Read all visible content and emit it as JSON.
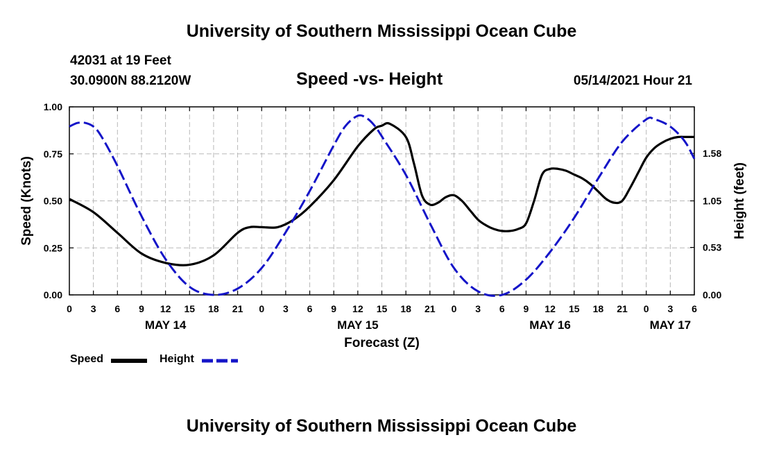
{
  "header": {
    "top_title": "University of Southern Mississippi Ocean Cube",
    "station": "42031 at 19 Feet",
    "coords": "30.0900N  88.2120W",
    "subtitle": "Speed -vs- Height",
    "datetime": "05/14/2021 Hour 21",
    "bottom_title": "University of Southern Mississippi Ocean Cube"
  },
  "colors": {
    "speed": "#000000",
    "height": "#1414c8",
    "grid": "#b8b8b8"
  },
  "chart_data": {
    "type": "line",
    "title": "Speed -vs- Height",
    "xlabel": "Forecast (Z)",
    "ylabel": "Speed (Knots)",
    "y2label": "Height (feet)",
    "x_units": "hours since 00Z May 14",
    "xlim": [
      0,
      78
    ],
    "ylim": [
      0,
      1.0
    ],
    "y2lim": [
      0,
      2.1
    ],
    "xticks": [
      0,
      3,
      6,
      9,
      12,
      15,
      18,
      21,
      24,
      27,
      30,
      33,
      36,
      39,
      42,
      45,
      48,
      51,
      54,
      57,
      60,
      63,
      66,
      69,
      72,
      75,
      78
    ],
    "xtick_labels": [
      "0",
      "3",
      "6",
      "9",
      "12",
      "15",
      "18",
      "21",
      "0",
      "3",
      "6",
      "9",
      "12",
      "15",
      "18",
      "21",
      "0",
      "3",
      "6",
      "9",
      "12",
      "15",
      "18",
      "21",
      "0",
      "3",
      "6"
    ],
    "date_labels": [
      {
        "x": 12,
        "label": "MAY 14"
      },
      {
        "x": 36,
        "label": "MAY 15"
      },
      {
        "x": 60,
        "label": "MAY 16"
      },
      {
        "x": 75,
        "label": "MAY 17"
      }
    ],
    "yticks": [
      0,
      0.25,
      0.5,
      0.75,
      1.0
    ],
    "ytick_labels": [
      "0.00",
      "0.25",
      "0.50",
      "0.75",
      "1.00"
    ],
    "y2ticks": [
      0,
      0.53,
      1.05,
      1.58
    ],
    "y2tick_labels": [
      "0.00",
      "0.53",
      "1.05",
      "1.58"
    ],
    "grid": true,
    "legend": [
      {
        "name": "Speed",
        "style": "solid"
      },
      {
        "name": "Height",
        "style": "dashed"
      }
    ],
    "series": [
      {
        "name": "Speed",
        "axis": "left",
        "x": [
          0,
          3,
          6,
          9,
          12,
          15,
          18,
          21,
          22.5,
          24,
          26,
          28,
          30,
          33,
          36,
          38,
          39,
          40,
          42,
          43,
          44,
          45,
          46,
          47,
          48,
          49,
          50,
          51,
          52,
          53,
          54,
          55,
          56,
          57,
          58,
          59,
          60,
          61,
          62,
          63,
          64,
          65,
          66,
          67,
          68,
          69,
          70,
          71,
          72,
          73,
          74,
          75,
          76,
          77,
          78
        ],
        "values": [
          0.51,
          0.44,
          0.33,
          0.22,
          0.17,
          0.16,
          0.21,
          0.33,
          0.36,
          0.36,
          0.36,
          0.4,
          0.47,
          0.61,
          0.79,
          0.88,
          0.9,
          0.91,
          0.84,
          0.7,
          0.53,
          0.48,
          0.49,
          0.52,
          0.53,
          0.5,
          0.45,
          0.4,
          0.37,
          0.35,
          0.34,
          0.34,
          0.35,
          0.38,
          0.5,
          0.64,
          0.67,
          0.67,
          0.66,
          0.64,
          0.62,
          0.59,
          0.55,
          0.51,
          0.49,
          0.5,
          0.57,
          0.65,
          0.73,
          0.78,
          0.81,
          0.83,
          0.84,
          0.84,
          0.84
        ]
      },
      {
        "name": "Height",
        "axis": "right",
        "x": [
          0,
          1,
          2,
          3,
          4,
          6,
          9,
          12,
          15,
          18,
          21,
          24,
          27,
          30,
          33,
          34.5,
          36,
          37,
          38,
          39,
          42,
          45,
          48,
          51,
          54,
          57,
          60,
          63,
          66,
          69,
          72,
          73,
          74,
          75,
          76,
          77,
          78
        ],
        "values": [
          1.88,
          1.92,
          1.92,
          1.88,
          1.77,
          1.44,
          0.88,
          0.4,
          0.09,
          0.0,
          0.07,
          0.3,
          0.7,
          1.16,
          1.67,
          1.89,
          2.0,
          1.98,
          1.9,
          1.77,
          1.34,
          0.8,
          0.3,
          0.04,
          0.0,
          0.17,
          0.48,
          0.86,
          1.3,
          1.71,
          1.96,
          1.96,
          1.93,
          1.88,
          1.8,
          1.69,
          1.52
        ]
      }
    ]
  }
}
